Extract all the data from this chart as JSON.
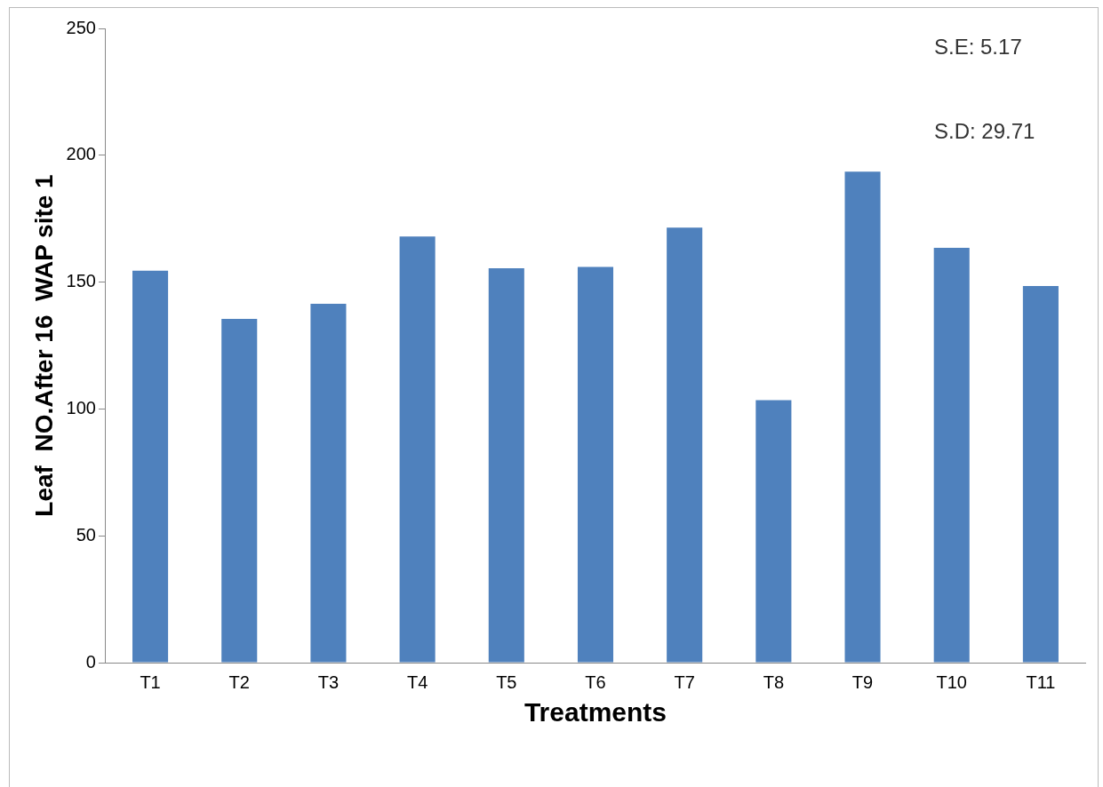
{
  "chart_data": {
    "type": "bar",
    "ylabel": "Leaf  NO.After 16  WAP site 1",
    "xlabel": "Treatments",
    "categories": [
      "T1",
      "T2",
      "T3",
      "T4",
      "T5",
      "T6",
      "T7",
      "T8",
      "T9",
      "T10",
      "T11"
    ],
    "values": [
      154.5,
      135.5,
      141.5,
      168,
      155.5,
      156,
      171.5,
      103.5,
      193.5,
      163.5,
      148.5
    ],
    "color": "#4f81bd",
    "ylim": [
      0,
      250
    ],
    "yticks": [
      0,
      50,
      100,
      150,
      200,
      250
    ],
    "grid": false,
    "legend": false,
    "annotations": [
      "S.E: 5.17",
      "S.D: 29.71"
    ]
  }
}
